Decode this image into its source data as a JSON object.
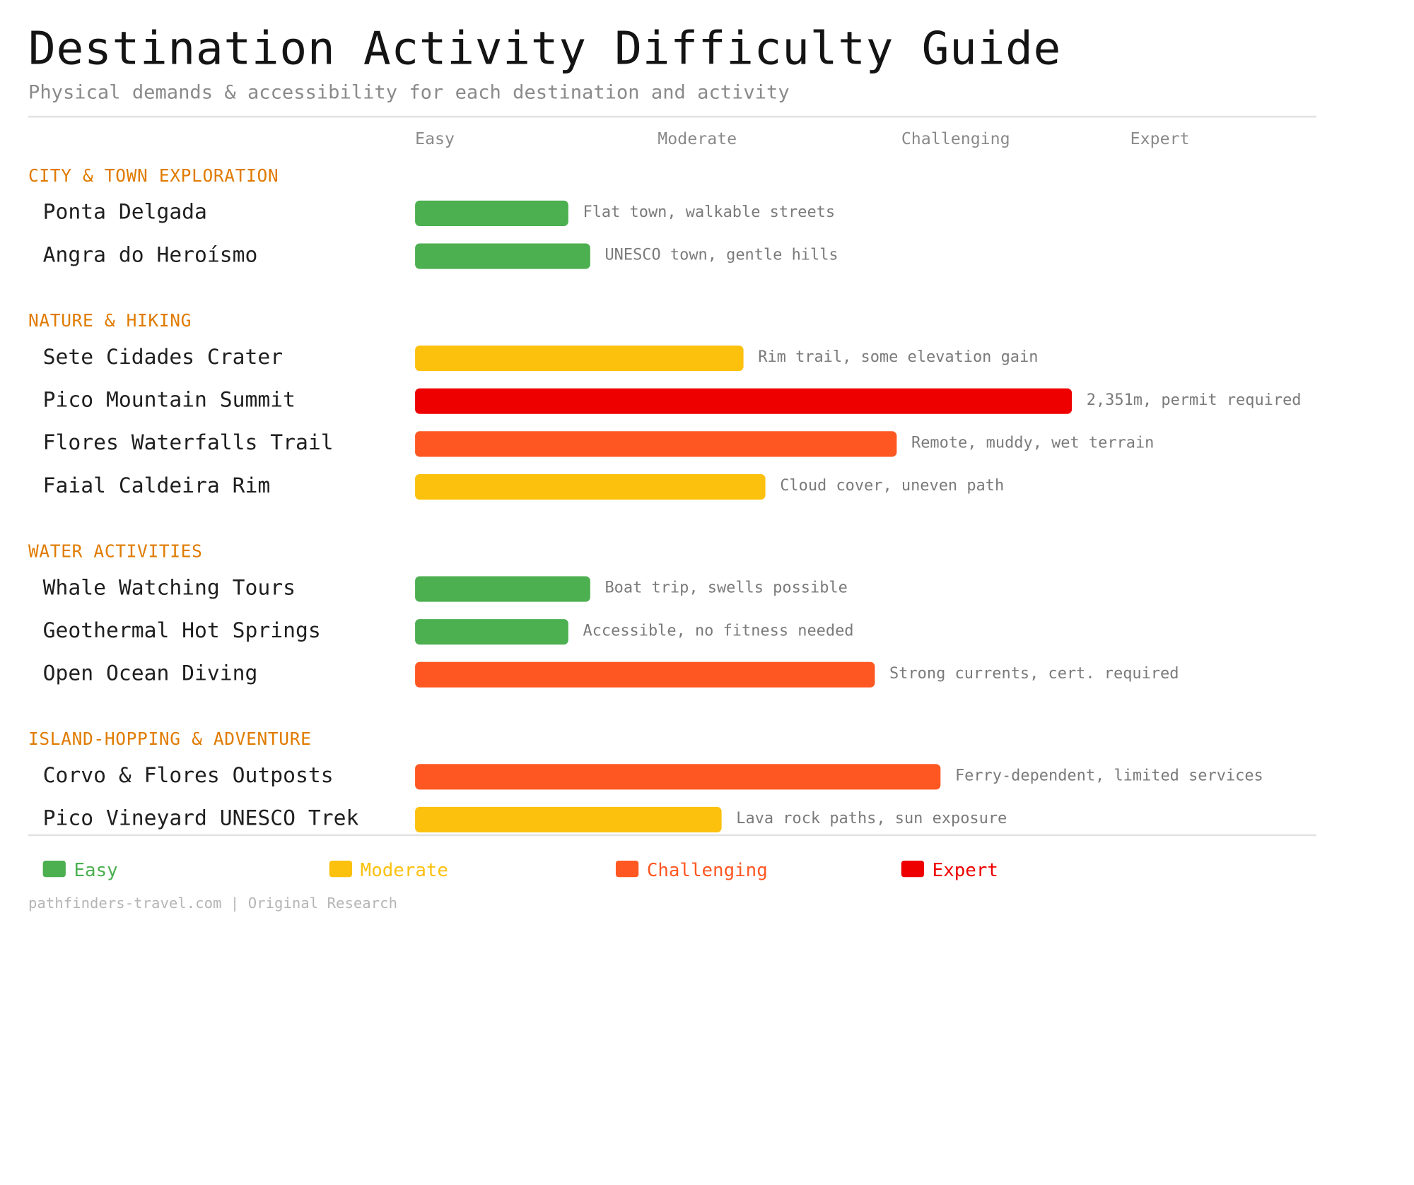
{
  "title": "Destination Activity Difficulty Guide",
  "subtitle": "Physical demands & accessibility for each destination and activity",
  "colors": {
    "Easy": "#4caf50",
    "Moderate": "#fcc10d",
    "Challenging": "#ff5722",
    "Expert": "#ee0000",
    "section": "#e07b00"
  },
  "chart_data": {
    "type": "bar",
    "orientation": "horizontal",
    "difficulty_levels": [
      "Easy",
      "Moderate",
      "Challenging",
      "Expert"
    ],
    "xlim": [
      0,
      4
    ],
    "groups": [
      {
        "name": "CITY & TOWN EXPLORATION",
        "items": [
          {
            "name": "Ponta Delgada",
            "value": 0.7,
            "level": "Easy",
            "note": "Flat town, walkable streets"
          },
          {
            "name": "Angra do Heroísmo",
            "value": 0.8,
            "level": "Easy",
            "note": "UNESCO town, gentle hills"
          }
        ]
      },
      {
        "name": "NATURE & HIKING",
        "items": [
          {
            "name": "Sete Cidades Crater",
            "value": 1.5,
            "level": "Moderate",
            "note": "Rim trail, some elevation gain"
          },
          {
            "name": "Pico Mountain Summit",
            "value": 3.0,
            "level": "Expert",
            "note": "2,351m, permit required"
          },
          {
            "name": "Flores Waterfalls Trail",
            "value": 2.2,
            "level": "Challenging",
            "note": "Remote, muddy, wet terrain"
          },
          {
            "name": "Faial Caldeira Rim",
            "value": 1.6,
            "level": "Moderate",
            "note": "Cloud cover, uneven path"
          }
        ]
      },
      {
        "name": "WATER ACTIVITIES",
        "items": [
          {
            "name": "Whale Watching Tours",
            "value": 0.8,
            "level": "Easy",
            "note": "Boat trip, swells possible"
          },
          {
            "name": "Geothermal Hot Springs",
            "value": 0.7,
            "level": "Easy",
            "note": "Accessible, no fitness needed"
          },
          {
            "name": "Open Ocean Diving",
            "value": 2.1,
            "level": "Challenging",
            "note": "Strong currents, cert. required"
          }
        ]
      },
      {
        "name": "ISLAND-HOPPING & ADVENTURE",
        "items": [
          {
            "name": "Corvo & Flores Outposts",
            "value": 2.4,
            "level": "Challenging",
            "note": "Ferry-dependent, limited services"
          },
          {
            "name": "Pico Vineyard UNESCO Trek",
            "value": 1.4,
            "level": "Moderate",
            "note": "Lava rock paths, sun exposure"
          }
        ]
      }
    ]
  },
  "legend": [
    "Easy",
    "Moderate",
    "Challenging",
    "Expert"
  ],
  "footer": "pathfinders-travel.com | Original Research"
}
